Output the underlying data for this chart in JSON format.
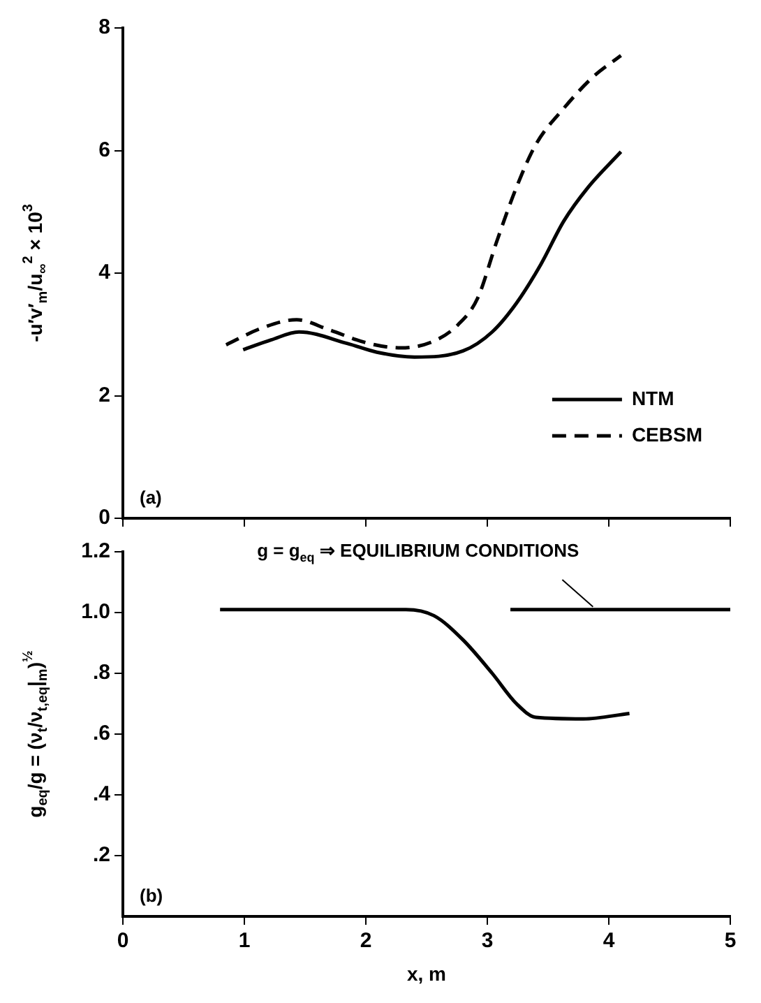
{
  "chart_data": [
    {
      "type": "line",
      "ylabel": "-u′v′$_{m}$/u$_{∞}$$^{2}$ × 10$^{3}$",
      "xlim": [
        0,
        5
      ],
      "xticks": [
        0,
        1,
        2,
        3,
        4,
        5
      ],
      "ylim": [
        0,
        8
      ],
      "yticks": [
        0,
        2,
        4,
        6,
        8
      ],
      "tick_labels": "y",
      "grid": false,
      "legend": "bottom right",
      "marker": "none",
      "annotations": [
        "(a)"
      ],
      "series": [
        {
          "name": "NTM",
          "color": "#000000",
          "line_style": "solid",
          "x": [
            0.99,
            1.22,
            1.45,
            1.85,
            2.09,
            2.4,
            2.8,
            3.04,
            3.24,
            3.44,
            3.63,
            3.83,
            4.1
          ],
          "values": [
            2.75,
            2.91,
            3.04,
            2.85,
            2.71,
            2.63,
            2.73,
            3.04,
            3.51,
            4.14,
            4.85,
            5.4,
            5.98
          ]
        },
        {
          "name": "CEBSM",
          "color": "#000000",
          "line_style": "dashed",
          "x": [
            0.85,
            1.14,
            1.43,
            1.69,
            2.01,
            2.29,
            2.56,
            2.76,
            2.92,
            3.08,
            3.24,
            3.4,
            3.63,
            3.87,
            4.1
          ],
          "values": [
            2.83,
            3.1,
            3.24,
            3.08,
            2.86,
            2.78,
            2.89,
            3.16,
            3.59,
            4.53,
            5.4,
            6.1,
            6.69,
            7.2,
            7.55
          ]
        }
      ]
    },
    {
      "type": "line",
      "xlabel": "x, m",
      "ylabel": "g$_{eq}$/g = (ν$_{t}$/ν$_{t,eq}$|$_{m}$)$^{½}$",
      "xlim": [
        0,
        5
      ],
      "xticks": [
        0,
        1,
        2,
        3,
        4,
        5
      ],
      "ylim": [
        0,
        1.2
      ],
      "yticks": [
        {
          "value": 0.2,
          "label": ".2"
        },
        {
          "value": 0.4,
          "label": ".4"
        },
        {
          "value": 0.6,
          "label": ".6"
        },
        {
          "value": 0.8,
          "label": ".8"
        },
        {
          "value": 1.0,
          "label": "1.0"
        },
        {
          "value": 1.2,
          "label": "1.2"
        }
      ],
      "grid": false,
      "marker": "none",
      "annotations": [
        "(b)",
        {
          "text": "g = g$_{eq}$ ⇒ EQUILIBRIUM CONDITIONS",
          "x": 3.87,
          "y": 1.01
        }
      ],
      "series": [
        {
          "color": "#000000",
          "line_style": "solid",
          "x": [
            0.8,
            1.5,
            2.33,
            2.56,
            2.8,
            3.04,
            3.24,
            3.4,
            3.79,
            4.17
          ],
          "values": [
            1.01,
            1.01,
            1.01,
            0.99,
            0.91,
            0.8,
            0.7,
            0.655,
            0.65,
            0.668
          ]
        },
        {
          "color": "#000000",
          "line_style": "solid",
          "x": [
            3.19,
            5.0
          ],
          "values": [
            1.01,
            1.01
          ]
        }
      ]
    }
  ]
}
